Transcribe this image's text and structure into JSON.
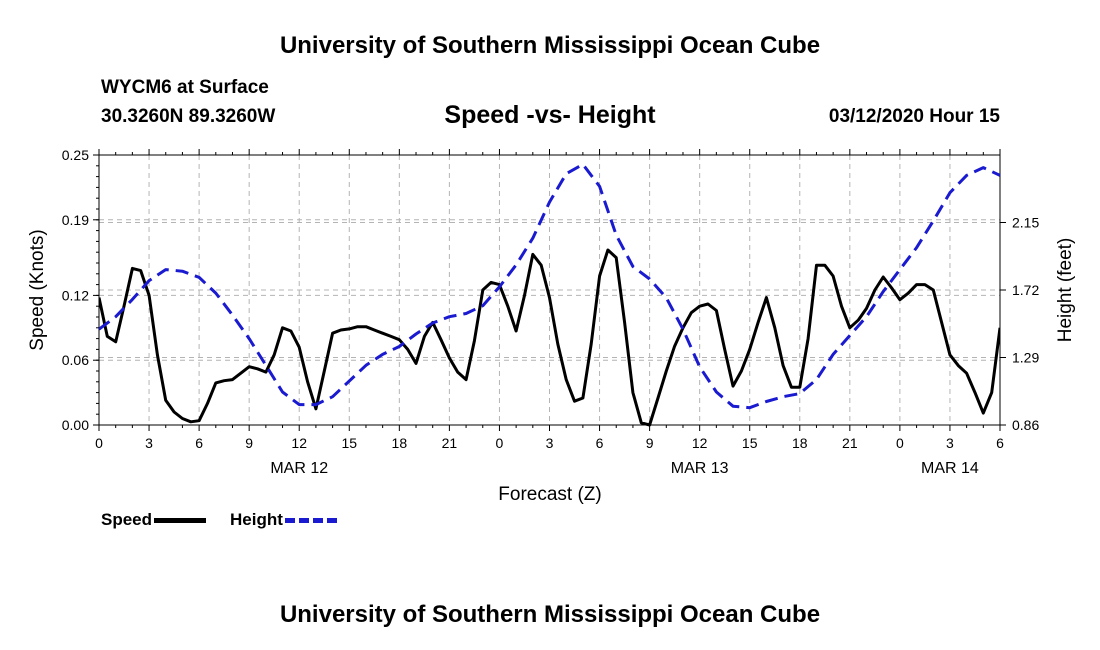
{
  "header": {
    "title": "University of Southern Mississippi Ocean Cube",
    "station": "WYCM6 at Surface",
    "coords": "30.3260N 89.3260W",
    "subtitle": "Speed -vs- Height",
    "datetime": "03/12/2020 Hour 15"
  },
  "footer": {
    "title": "University of Southern Mississippi Ocean Cube"
  },
  "legend": {
    "speed_label": "Speed",
    "height_label": "Height"
  },
  "colors": {
    "speed": "#000000",
    "height": "#1a1ad0",
    "grid": "#b4b4b4"
  },
  "chart_data": {
    "type": "line",
    "xlabel": "Forecast (Z)",
    "ylabel": "Speed (Knots)",
    "y2label": "Height (feet)",
    "xlim": [
      0,
      54
    ],
    "ylim": [
      0,
      0.25
    ],
    "y2lim": [
      0.86,
      2.58
    ],
    "x_ticks": [
      0,
      3,
      6,
      9,
      12,
      15,
      18,
      21,
      24,
      27,
      30,
      33,
      36,
      39,
      42,
      45,
      48,
      51,
      54
    ],
    "x_tick_labels": [
      "0",
      "3",
      "6",
      "9",
      "12",
      "15",
      "18",
      "21",
      "0",
      "3",
      "6",
      "9",
      "12",
      "15",
      "18",
      "21",
      "0",
      "3",
      "6"
    ],
    "y_ticks": [
      0,
      0.06,
      0.12,
      0.19,
      0.25
    ],
    "y_tick_labels": [
      "0.00",
      "0.06",
      "0.12",
      "0.19",
      "0.25"
    ],
    "y2_ticks": [
      0.86,
      1.29,
      1.72,
      2.15
    ],
    "y2_tick_labels": [
      "0.86",
      "1.29",
      "1.72",
      "2.15"
    ],
    "date_labels": [
      {
        "label": "MAR 12",
        "x": 12
      },
      {
        "label": "MAR 13",
        "x": 36
      },
      {
        "label": "MAR 14",
        "x": 51
      }
    ],
    "grid": true,
    "legend_position": "bottom-left",
    "series": [
      {
        "name": "Speed",
        "axis": "left",
        "style": "solid",
        "x": [
          0,
          0.5,
          1,
          1.5,
          2,
          2.5,
          3,
          3.5,
          4,
          4.5,
          5,
          5.5,
          6,
          6.5,
          7,
          7.5,
          8,
          8.5,
          9,
          9.5,
          10,
          10.5,
          11,
          11.5,
          12,
          12.5,
          13,
          13.5,
          14,
          14.5,
          15,
          15.5,
          16,
          16.5,
          17,
          17.5,
          18,
          18.5,
          19,
          19.5,
          20,
          20.5,
          21,
          21.5,
          22,
          22.5,
          23,
          23.5,
          24,
          24.5,
          25,
          25.5,
          26,
          26.5,
          27,
          27.5,
          28,
          28.5,
          29,
          29.5,
          30,
          30.5,
          31,
          31.5,
          32,
          32.5,
          33,
          33.5,
          34,
          34.5,
          35,
          35.5,
          36,
          36.5,
          37,
          37.5,
          38,
          38.5,
          39,
          39.5,
          40,
          40.5,
          41,
          41.5,
          42,
          42.5,
          43,
          43.5,
          44,
          44.5,
          45,
          45.5,
          46,
          46.5,
          47,
          47.5,
          48,
          48.5,
          49,
          49.5,
          50,
          50.5,
          51,
          51.5,
          52,
          52.5,
          53,
          53.5,
          54
        ],
        "values": [
          0.118,
          0.082,
          0.077,
          0.11,
          0.145,
          0.143,
          0.12,
          0.065,
          0.023,
          0.012,
          0.006,
          0.003,
          0.004,
          0.02,
          0.039,
          0.041,
          0.042,
          0.048,
          0.054,
          0.052,
          0.049,
          0.065,
          0.09,
          0.087,
          0.072,
          0.04,
          0.015,
          0.05,
          0.085,
          0.088,
          0.089,
          0.091,
          0.091,
          0.088,
          0.085,
          0.082,
          0.079,
          0.07,
          0.057,
          0.082,
          0.095,
          0.079,
          0.062,
          0.049,
          0.042,
          0.078,
          0.125,
          0.132,
          0.13,
          0.11,
          0.087,
          0.12,
          0.158,
          0.148,
          0.118,
          0.075,
          0.042,
          0.022,
          0.025,
          0.075,
          0.138,
          0.162,
          0.155,
          0.095,
          0.03,
          0.002,
          0.0,
          0.025,
          0.05,
          0.073,
          0.09,
          0.104,
          0.11,
          0.112,
          0.106,
          0.07,
          0.036,
          0.05,
          0.07,
          0.095,
          0.118,
          0.09,
          0.055,
          0.035,
          0.035,
          0.08,
          0.148,
          0.148,
          0.138,
          0.11,
          0.09,
          0.097,
          0.108,
          0.125,
          0.137,
          0.127,
          0.116,
          0.122,
          0.13,
          0.13,
          0.125,
          0.095,
          0.065,
          0.055,
          0.048,
          0.03,
          0.011,
          0.03,
          0.09
        ]
      },
      {
        "name": "Height",
        "axis": "right",
        "style": "dashed",
        "x": [
          0,
          1,
          2,
          3,
          4,
          5,
          6,
          7,
          8,
          9,
          10,
          11,
          12,
          13,
          14,
          15,
          16,
          17,
          18,
          19,
          20,
          21,
          22,
          23,
          24,
          25,
          26,
          27,
          28,
          29,
          30,
          31,
          32,
          33,
          34,
          35,
          36,
          37,
          38,
          39,
          40,
          41,
          42,
          43,
          44,
          45,
          46,
          47,
          48,
          49,
          50,
          51,
          52,
          53,
          54
        ],
        "values": [
          1.47,
          1.55,
          1.66,
          1.78,
          1.85,
          1.84,
          1.8,
          1.7,
          1.56,
          1.41,
          1.24,
          1.07,
          0.99,
          0.99,
          1.04,
          1.14,
          1.24,
          1.31,
          1.36,
          1.44,
          1.51,
          1.55,
          1.57,
          1.62,
          1.74,
          1.88,
          2.05,
          2.28,
          2.46,
          2.52,
          2.38,
          2.07,
          1.87,
          1.79,
          1.67,
          1.47,
          1.23,
          1.07,
          0.98,
          0.97,
          1.01,
          1.04,
          1.06,
          1.15,
          1.31,
          1.43,
          1.55,
          1.71,
          1.85,
          1.99,
          2.16,
          2.34,
          2.45,
          2.5,
          2.45
        ]
      }
    ]
  }
}
